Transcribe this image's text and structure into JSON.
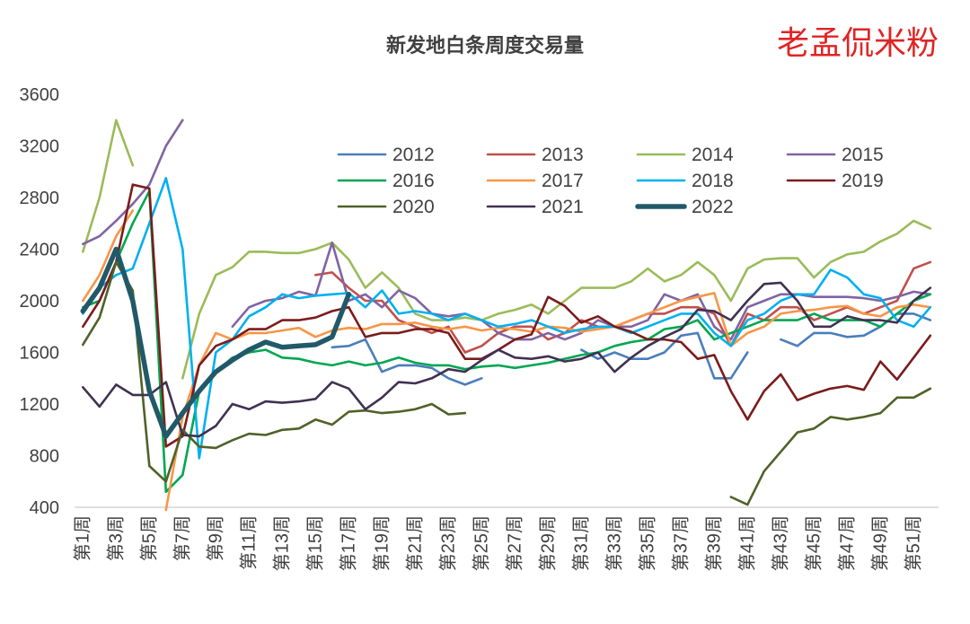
{
  "watermark": "老孟侃米粉",
  "colors": {
    "2012": "#4a7ebb",
    "2013": "#c0504d",
    "2014": "#9bbb59",
    "2015": "#8064a2",
    "2016": "#00a651",
    "2017": "#f79646",
    "2018": "#00b0f0",
    "2019": "#7b1c1c",
    "2020": "#4f6228",
    "2021": "#403151",
    "2022": "#215968"
  },
  "chart_data": {
    "type": "line",
    "title": "新发地白条周度交易量",
    "xlabel": "",
    "ylabel": "",
    "ylim": [
      400,
      3600
    ],
    "yticks": [
      400,
      800,
      1200,
      1600,
      2000,
      2400,
      2800,
      3200,
      3600
    ],
    "x": [
      "第1周",
      "第2周",
      "第3周",
      "第4周",
      "第5周",
      "第6周",
      "第7周",
      "第8周",
      "第9周",
      "第10周",
      "第11周",
      "第12周",
      "第13周",
      "第14周",
      "第15周",
      "第16周",
      "第17周",
      "第18周",
      "第19周",
      "第20周",
      "第21周",
      "第22周",
      "第23周",
      "第24周",
      "第25周",
      "第26周",
      "第27周",
      "第28周",
      "第29周",
      "第30周",
      "第31周",
      "第32周",
      "第33周",
      "第34周",
      "第35周",
      "第36周",
      "第37周",
      "第38周",
      "第39周",
      "第40周",
      "第41周",
      "第42周",
      "第43周",
      "第44周",
      "第45周",
      "第46周",
      "第47周",
      "第48周",
      "第49周",
      "第50周",
      "第51周",
      "第52周"
    ],
    "xtick_labels": [
      "第1周",
      "",
      "第3周",
      "",
      "第5周",
      "",
      "第7周",
      "",
      "第9周",
      "",
      "第11周",
      "",
      "第13周",
      "",
      "第15周",
      "",
      "第17周",
      "",
      "第19周",
      "",
      "第21周",
      "",
      "第23周",
      "",
      "第25周",
      "",
      "第27周",
      "",
      "第29周",
      "",
      "第31周",
      "",
      "第33周",
      "",
      "第35周",
      "",
      "第37周",
      "",
      "第39周",
      "",
      "第41周",
      "",
      "第43周",
      "",
      "第45周",
      "",
      "第47周",
      "",
      "第49周",
      "",
      "第51周",
      ""
    ],
    "grid": false,
    "legend_position": "top-right",
    "series": [
      {
        "name": "2012",
        "values": [
          null,
          null,
          null,
          null,
          null,
          null,
          null,
          null,
          null,
          null,
          null,
          null,
          null,
          null,
          null,
          1640,
          1650,
          1700,
          1450,
          1500,
          1500,
          1480,
          1400,
          1350,
          1400,
          null,
          null,
          null,
          null,
          null,
          1620,
          1550,
          1600,
          1550,
          1550,
          1600,
          1730,
          1750,
          1400,
          1400,
          1600,
          null,
          1700,
          1650,
          1750,
          1750,
          1720,
          1730,
          1800,
          1900,
          1900,
          1850
        ]
      },
      {
        "name": "2013",
        "values": [
          null,
          null,
          null,
          null,
          null,
          null,
          null,
          null,
          null,
          null,
          null,
          null,
          null,
          null,
          2200,
          2220,
          2100,
          2000,
          2000,
          1850,
          1800,
          1750,
          1800,
          1600,
          1650,
          1750,
          1800,
          1800,
          1700,
          1750,
          1850,
          1800,
          1800,
          1850,
          1900,
          1900,
          1950,
          1950,
          1900,
          1650,
          1900,
          1850,
          1950,
          1950,
          1850,
          1900,
          1950,
          1900,
          1950,
          2000,
          2250,
          2300
        ]
      },
      {
        "name": "2014",
        "values": [
          2380,
          2800,
          3400,
          3050,
          null,
          null,
          1400,
          1900,
          2200,
          2260,
          2380,
          2380,
          2370,
          2370,
          2400,
          2450,
          2320,
          2100,
          2220,
          2100,
          1900,
          1850,
          1850,
          1870,
          1850,
          1900,
          1930,
          1970,
          1900,
          2000,
          2100,
          2100,
          2100,
          2150,
          2250,
          2150,
          2200,
          2300,
          2200,
          2000,
          2250,
          2320,
          2330,
          2330,
          2180,
          2300,
          2360,
          2380,
          2460,
          2520,
          2620,
          2560
        ]
      },
      {
        "name": "2015",
        "values": [
          2440,
          2500,
          2620,
          2750,
          2900,
          3200,
          3400,
          null,
          null,
          1800,
          1950,
          2000,
          2020,
          2070,
          2040,
          2450,
          2000,
          2050,
          1950,
          2080,
          2020,
          1900,
          1880,
          1900,
          1850,
          1750,
          1700,
          1700,
          1750,
          1700,
          1750,
          1850,
          1800,
          1800,
          1850,
          2050,
          2000,
          2050,
          1800,
          1700,
          1950,
          2000,
          2050,
          2050,
          2030,
          2030,
          2030,
          2020,
          2000,
          2030,
          2070,
          2050
        ]
      },
      {
        "name": "2016",
        "values": [
          1950,
          2000,
          2300,
          2600,
          2850,
          520,
          650,
          1300,
          1450,
          1560,
          1600,
          1620,
          1560,
          1550,
          1520,
          1500,
          1530,
          1500,
          1520,
          1560,
          1520,
          1500,
          1500,
          1470,
          1490,
          1500,
          1480,
          1500,
          1520,
          1550,
          1580,
          1600,
          1650,
          1680,
          1700,
          1780,
          1800,
          1850,
          1700,
          1750,
          1800,
          1850,
          1850,
          1850,
          1900,
          1850,
          1850,
          1850,
          1800,
          1900,
          2000,
          2050
        ]
      },
      {
        "name": "2017",
        "values": [
          2000,
          2200,
          2500,
          2700,
          null,
          380,
          1100,
          1500,
          1750,
          1700,
          1750,
          1750,
          1770,
          1790,
          1720,
          1770,
          1790,
          1780,
          1820,
          1820,
          1830,
          1800,
          1780,
          1800,
          1770,
          1790,
          1780,
          1760,
          1800,
          1790,
          1760,
          1780,
          1800,
          1850,
          1900,
          1950,
          2000,
          2030,
          2060,
          1650,
          1750,
          1800,
          1900,
          1920,
          1930,
          1950,
          1960,
          1900,
          1880,
          1950,
          1970,
          1950
        ]
      },
      {
        "name": "2018",
        "values": [
          1900,
          2100,
          2200,
          2250,
          2600,
          2950,
          2400,
          780,
          1600,
          1700,
          1880,
          1950,
          2050,
          2020,
          2040,
          2050,
          2060,
          1950,
          2080,
          1900,
          1920,
          1900,
          1850,
          1900,
          1850,
          1800,
          1820,
          1850,
          1800,
          1750,
          1780,
          1800,
          1800,
          1750,
          1800,
          1850,
          1900,
          1900,
          1750,
          1650,
          1850,
          1900,
          2000,
          2050,
          2050,
          2240,
          2180,
          2050,
          2020,
          1850,
          1800,
          1950
        ]
      },
      {
        "name": "2019",
        "values": [
          1800,
          2000,
          2300,
          2900,
          2870,
          870,
          950,
          1500,
          1650,
          1700,
          1780,
          1780,
          1850,
          1850,
          1870,
          1920,
          1950,
          1720,
          1750,
          1750,
          1780,
          1780,
          1750,
          1550,
          1550,
          1620,
          1700,
          1740,
          2030,
          1960,
          1830,
          1880,
          1800,
          1760,
          1700,
          1700,
          1680,
          1550,
          1580,
          1300,
          1080,
          1300,
          1430,
          1230,
          1280,
          1320,
          1340,
          1310,
          1530,
          1390,
          1560,
          1730
        ]
      },
      {
        "name": "2020",
        "values": [
          1660,
          1870,
          2300,
          2080,
          720,
          600,
          1000,
          870,
          860,
          920,
          970,
          960,
          1000,
          1010,
          1080,
          1040,
          1140,
          1150,
          1130,
          1140,
          1160,
          1200,
          1120,
          1130,
          null,
          null,
          null,
          null,
          null,
          null,
          null,
          null,
          null,
          null,
          null,
          null,
          null,
          null,
          null,
          480,
          420,
          680,
          830,
          980,
          1010,
          1100,
          1080,
          1100,
          1130,
          1250,
          1250,
          1320
        ]
      },
      {
        "name": "2021",
        "values": [
          1330,
          1180,
          1350,
          1270,
          1270,
          1370,
          960,
          950,
          1030,
          1200,
          1160,
          1220,
          1210,
          1220,
          1240,
          1370,
          1320,
          1160,
          1250,
          1370,
          1360,
          1400,
          1470,
          1450,
          1540,
          1620,
          1560,
          1550,
          1570,
          1530,
          1550,
          1600,
          1450,
          1560,
          1650,
          1720,
          1780,
          1930,
          1920,
          1850,
          2000,
          2130,
          2140,
          2000,
          1800,
          1800,
          1880,
          1850,
          1850,
          1830,
          2000,
          2100
        ]
      },
      {
        "name": "2022",
        "values": [
          1920,
          2100,
          2400,
          2000,
          1300,
          950,
          1130,
          1300,
          1450,
          1540,
          1620,
          1680,
          1640,
          1650,
          1660,
          1720,
          2050,
          null,
          null,
          null,
          null,
          null,
          null,
          null,
          null,
          null,
          null,
          null,
          null,
          null,
          null,
          null,
          null,
          null,
          null,
          null,
          null,
          null,
          null,
          null,
          null,
          null,
          null,
          null,
          null,
          null,
          null,
          null,
          null,
          null,
          null,
          null
        ]
      }
    ]
  }
}
